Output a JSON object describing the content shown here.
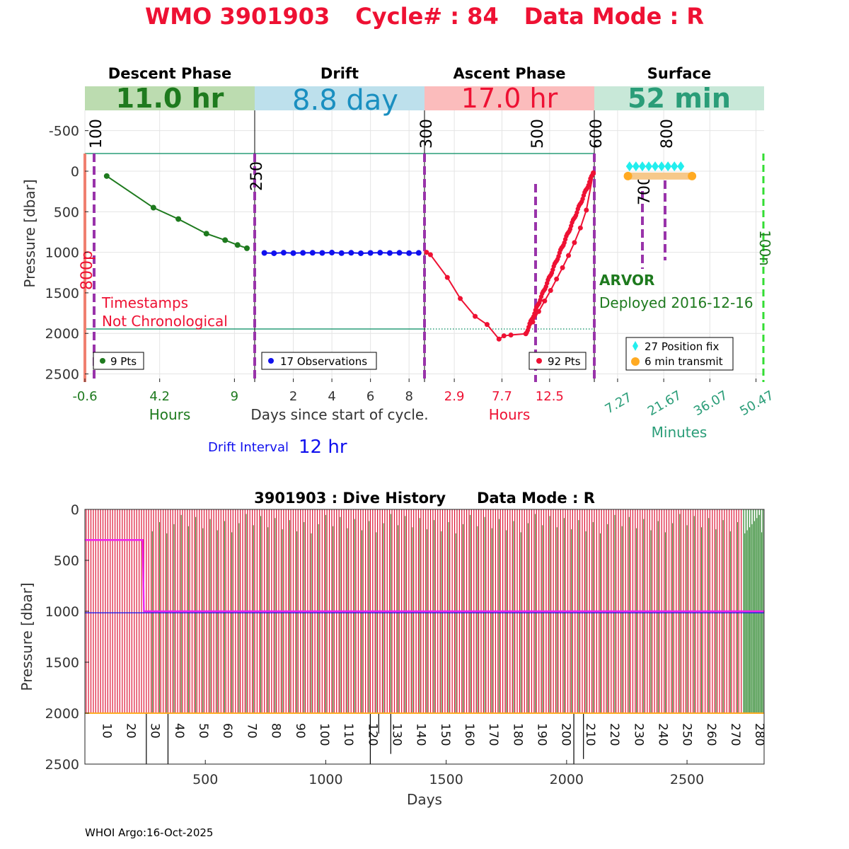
{
  "title": {
    "wmo": "WMO 3901903",
    "cycle": "Cycle# : 84",
    "mode": "Data Mode : R"
  },
  "colors": {
    "title": "#ee1133",
    "descent": "#1e7a1e",
    "drift": "#1010ee",
    "ascent": "#ee1133",
    "surface": "#2a9d78",
    "descent_bg": "#bcdcb0",
    "drift_bg": "#bde0ec",
    "ascent_bg": "#fbbcbc",
    "surface_bg": "#c8e8d8",
    "purple": "#9933aa",
    "teal": "#2a9d78",
    "magenta": "#ee22ee",
    "cyan": "#22eeee",
    "orange": "#ffaa22",
    "gline": "#33dd33"
  },
  "top": {
    "ylabel": "Pressure [dbar]",
    "y_ticks": [
      -500,
      0,
      500,
      1000,
      1500,
      2000,
      2500
    ],
    "phases": [
      {
        "title": "Descent Phase",
        "duration": "11.0 hr",
        "axis_label": "Hours",
        "ticks": [
          "-0.6",
          "4.2",
          "9"
        ]
      },
      {
        "title": "Drift",
        "duration": "8.8 day",
        "axis_label": "Days since start of cycle.",
        "ticks": [
          "2",
          "4",
          "6",
          "8"
        ]
      },
      {
        "title": "Ascent Phase",
        "duration": "17.0 hr",
        "axis_label": "Hours",
        "ticks": [
          "2.9",
          "7.7",
          "12.5"
        ]
      },
      {
        "title": "Surface",
        "duration": "52 min",
        "axis_label": "Minutes",
        "ticks": [
          "7.27",
          "21.67",
          "36.07",
          "50.47"
        ]
      }
    ],
    "markers": [
      "100",
      "250",
      "300",
      "500",
      "600",
      "700",
      "800",
      "800p",
      "100n"
    ],
    "notes": {
      "timestamps1": "Timestamps",
      "timestamps2": "Not Chronological",
      "float_type": "ARVOR",
      "deployed": "Deployed 2016-12-16"
    },
    "legends": {
      "descent": "9 Pts",
      "drift": "17 Observations",
      "ascent": "92 Pts",
      "position": "27 Position fix",
      "transmit": "6 min transmit"
    },
    "drift_interval_label": "Drift Interval",
    "drift_interval_value": "12 hr"
  },
  "bottom": {
    "title": "3901903 : Dive History      Data Mode : R",
    "ylabel": "Pressure [dbar]",
    "xlabel": "Days",
    "x_ticks": [
      500,
      1000,
      1500,
      2000,
      2500
    ],
    "y_ticks": [
      0,
      500,
      1000,
      1500,
      2000,
      2500
    ],
    "cycle_labels": [
      "10",
      "20",
      "30",
      "40",
      "50",
      "60",
      "70",
      "80",
      "90",
      "100",
      "110",
      "120",
      "130",
      "140",
      "150",
      "160",
      "170",
      "180",
      "190",
      "200",
      "210",
      "220",
      "230",
      "240",
      "250",
      "260",
      "270",
      "280"
    ]
  },
  "footer": "WHOI Argo:16-Oct-2025",
  "chart_data": [
    {
      "type": "line",
      "name": "descent",
      "x_unit": "hours",
      "x": [
        0.8,
        3.8,
        5.4,
        7.2,
        8.4,
        9.2,
        9.8
      ],
      "y": [
        60,
        450,
        590,
        770,
        850,
        910,
        950
      ],
      "xlim": [
        -0.6,
        10.3
      ],
      "ylim": [
        2600,
        -750
      ]
    },
    {
      "type": "line",
      "name": "drift",
      "x_unit": "days",
      "x": [
        0.5,
        1.0,
        1.5,
        2.0,
        2.5,
        3.0,
        3.5,
        4.0,
        4.5,
        5.0,
        5.5,
        6.0,
        6.5,
        7.0,
        7.5,
        8.0,
        8.5
      ],
      "y": [
        1008,
        1012,
        1005,
        1010,
        1007,
        1006,
        1008,
        1004,
        1010,
        1006,
        1012,
        1008,
        1005,
        1009,
        1006,
        1010,
        1007
      ],
      "xlim": [
        0,
        8.8
      ],
      "ylim": [
        2600,
        -750
      ]
    },
    {
      "type": "line",
      "name": "ascent",
      "x_unit": "hours",
      "x": [
        0.1,
        0.5,
        2.2,
        3.5,
        5.0,
        6.2,
        7.4,
        7.9,
        8.6,
        10.1,
        10.8,
        11.4,
        12.0,
        12.6,
        13.2,
        13.8,
        14.4,
        15.0,
        15.6,
        16.2,
        16.9
      ],
      "y": [
        1000,
        1030,
        1310,
        1570,
        1790,
        1890,
        2070,
        2030,
        2020,
        2005,
        1860,
        1730,
        1600,
        1470,
        1330,
        1190,
        1040,
        880,
        700,
        480,
        20
      ],
      "xlim": [
        -0.1,
        17.0
      ],
      "ylim": [
        2600,
        -750
      ]
    },
    {
      "type": "scatter",
      "name": "surface",
      "x_unit": "minutes",
      "position_fix": {
        "x": [
          11,
          13,
          15,
          17,
          19,
          21,
          23,
          25,
          27
        ],
        "y": [
          -60,
          -60,
          -60,
          -60,
          -60,
          -60,
          -60,
          -60,
          -60
        ]
      },
      "transmit": {
        "x": [
          10.5,
          30.5
        ],
        "y": [
          60,
          60
        ]
      },
      "xlim": [
        0,
        53
      ],
      "ylim": [
        2600,
        -750
      ]
    },
    {
      "type": "line",
      "name": "dive history",
      "title": "3901903 : Dive History      Data Mode : R",
      "xlabel": "Days",
      "ylabel": "Pressure [dbar]",
      "xlim": [
        0,
        2820
      ],
      "ylim": [
        2500,
        0
      ],
      "park_pressure_magenta": [
        {
          "x": 0,
          "y": 300
        },
        {
          "x": 240,
          "y": 300
        },
        {
          "x": 245,
          "y": 1000
        },
        {
          "x": 2820,
          "y": 1000
        }
      ],
      "profile_depth_orange": 2000,
      "profile_lines_red_until_day": 2730
    }
  ]
}
